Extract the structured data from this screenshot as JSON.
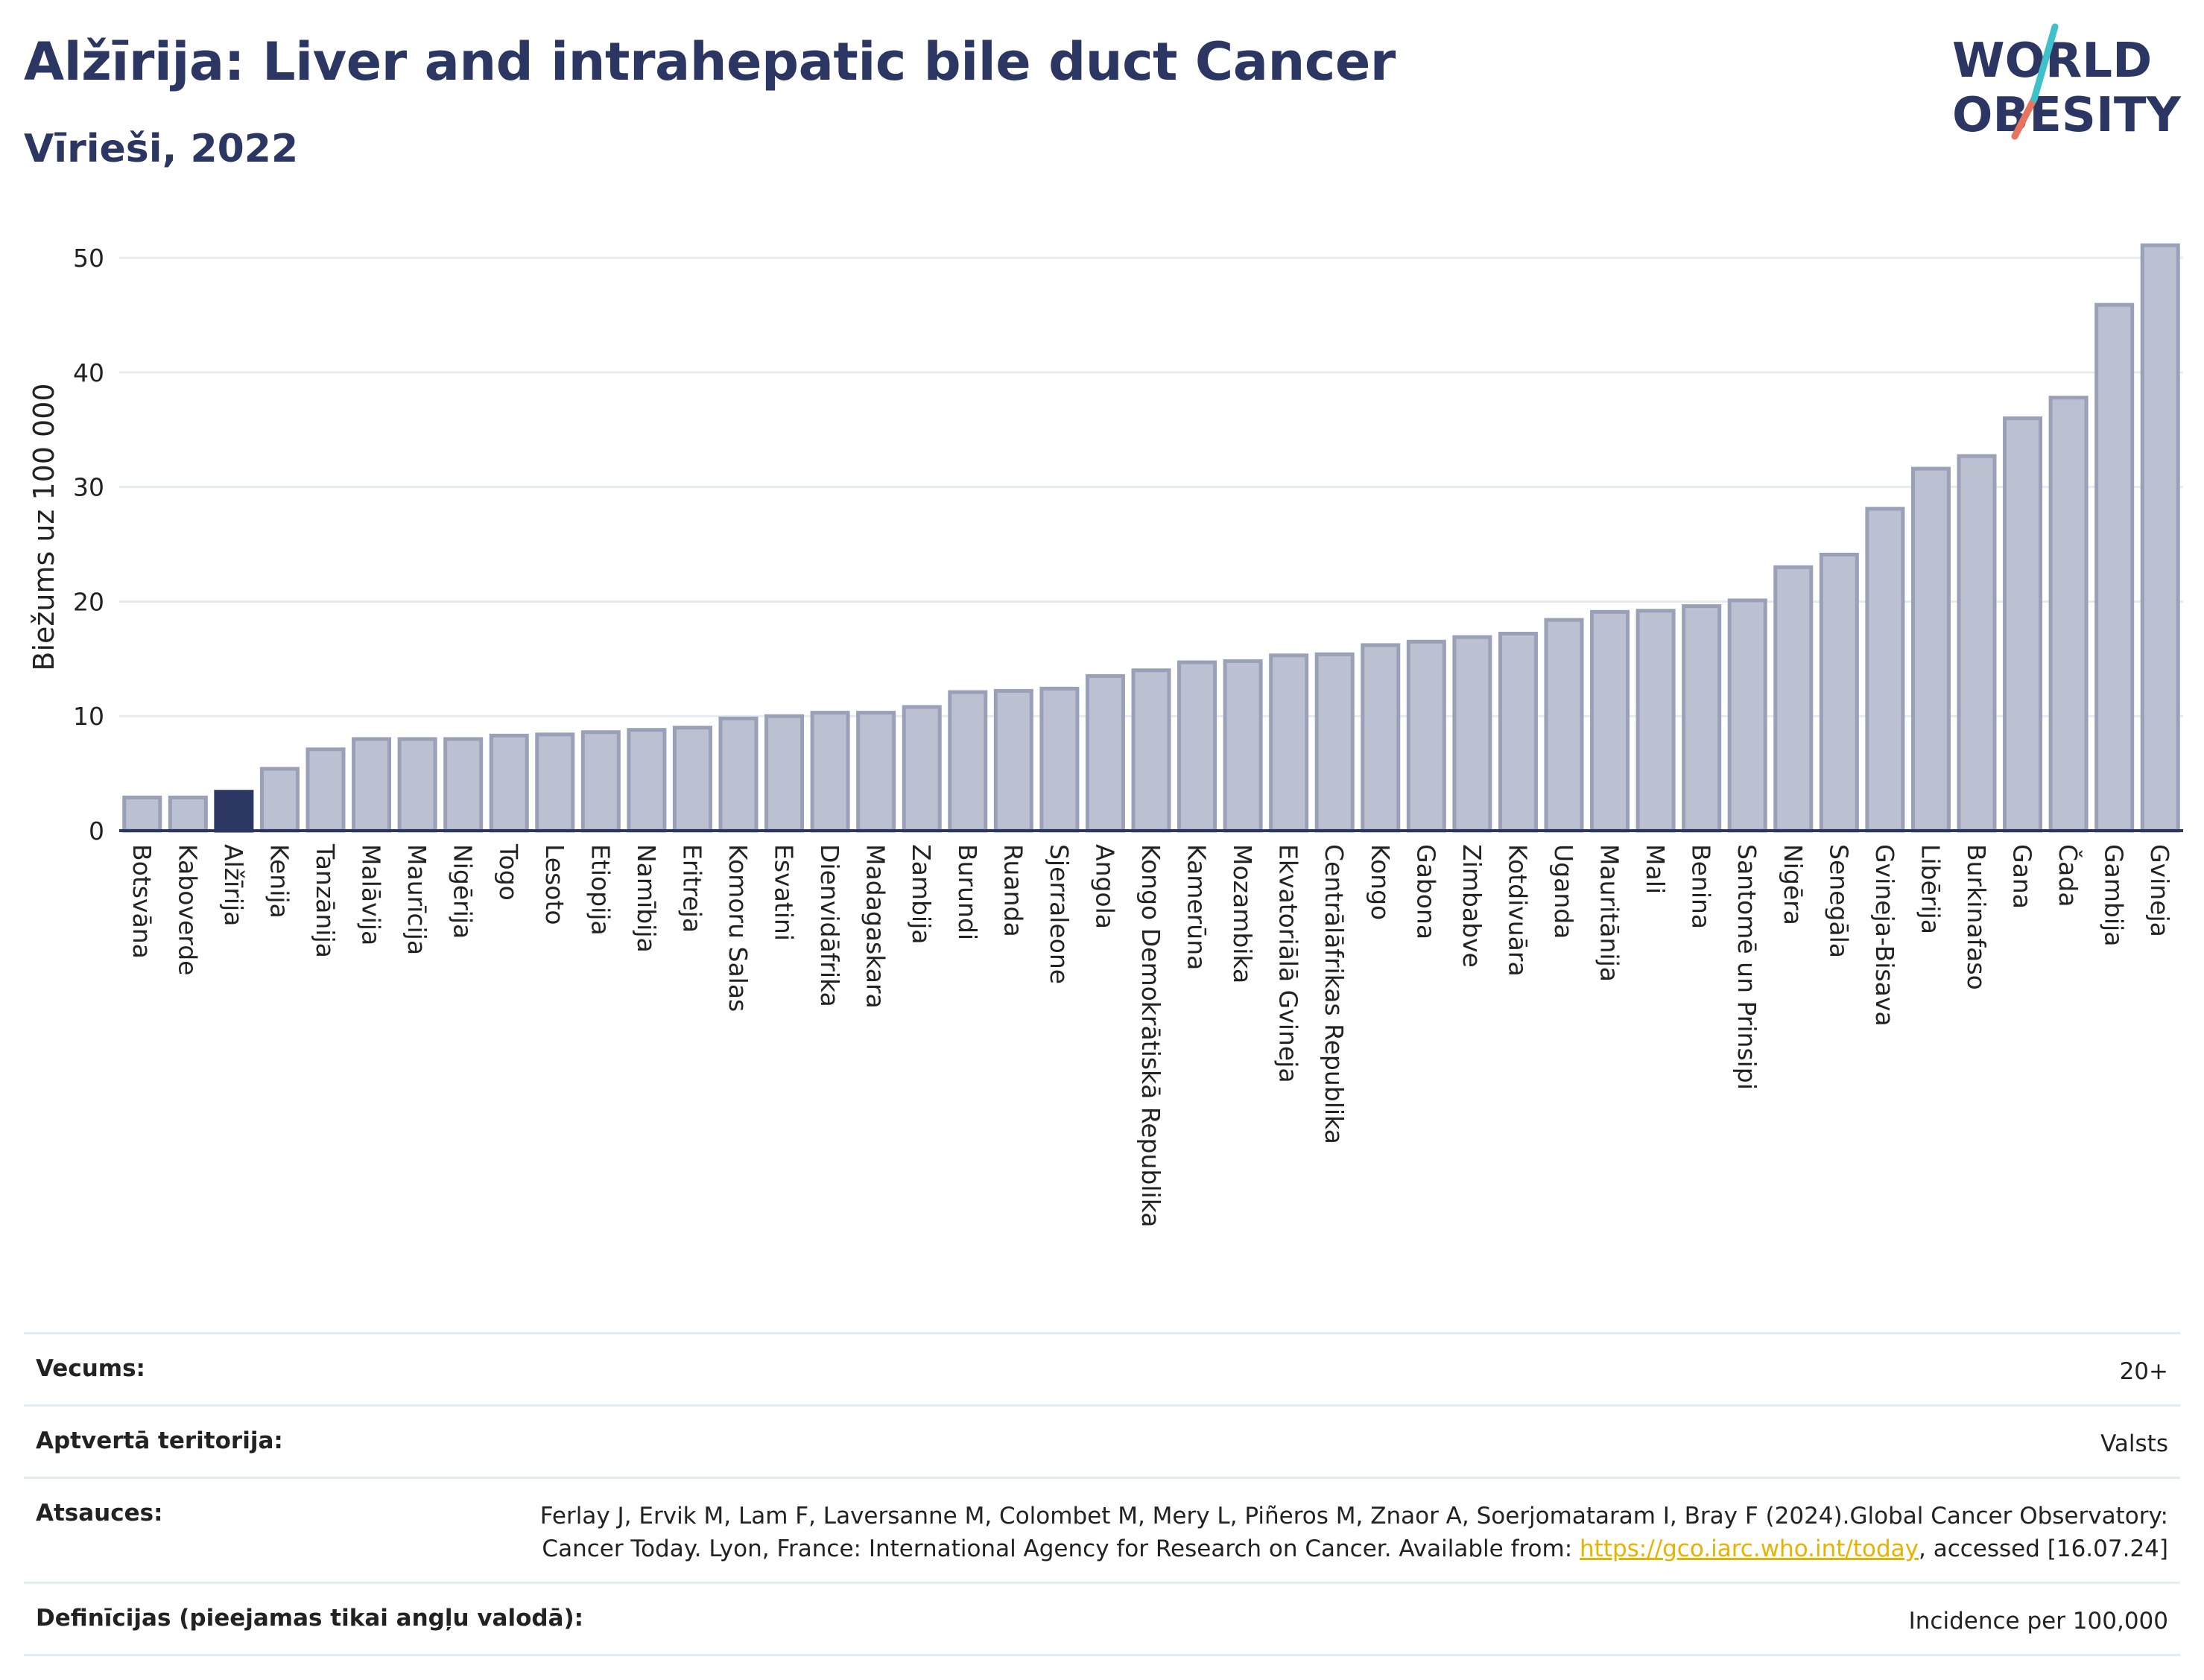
{
  "header": {
    "title": "Alžīrija: Liver and intrahepatic bile duct Cancer",
    "subtitle": "Vīrieši, 2022"
  },
  "logo": {
    "line1": "WORLD",
    "line2": "OBESITY"
  },
  "colors": {
    "bar": "#bcc1d1",
    "bar_stroke": "#9aa0b8",
    "highlight": "#2b3663",
    "grid": "#e6ebf0",
    "text": "#2b3663"
  },
  "chart_data": {
    "type": "bar",
    "title": "Alžīrija: Liver and intrahepatic bile duct Cancer",
    "subtitle": "Vīrieši, 2022",
    "xlabel": "",
    "ylabel": "Biežums uz 100 000",
    "ylim": [
      0,
      53
    ],
    "yticks": [
      0,
      10,
      20,
      30,
      40,
      50
    ],
    "grid": true,
    "highlight": "Alžīrija",
    "categories": [
      "Botsvāna",
      "Kaboverde",
      "Alžīrija",
      "Kenija",
      "Tanzānija",
      "Malāvija",
      "Maurīcija",
      "Nigērija",
      "Togo",
      "Lesoto",
      "Etiopija",
      "Namībija",
      "Eritreja",
      "Komoru Salas",
      "Esvatini",
      "Dienvidāfrika",
      "Madagaskara",
      "Zambija",
      "Burundi",
      "Ruanda",
      "Sjerraleone",
      "Angola",
      "Kongo Demokrātiskā Republika",
      "Kamerūna",
      "Mozambika",
      "Ekvatoriālā Gvineja",
      "Centrālāfrikas Republika",
      "Kongo",
      "Gabona",
      "Zimbabve",
      "Kotdivuāra",
      "Uganda",
      "Mauritānija",
      "Mali",
      "Benina",
      "Santomē un Prinsipi",
      "Nigēra",
      "Senegāla",
      "Gvineja-Bisava",
      "Libērija",
      "Burkinafaso",
      "Gana",
      "Čada",
      "Gambija",
      "Gvineja"
    ],
    "values": [
      2.9,
      2.9,
      3.4,
      5.4,
      7.1,
      8.0,
      8.0,
      8.0,
      8.3,
      8.4,
      8.6,
      8.8,
      9.0,
      9.8,
      10.0,
      10.3,
      10.3,
      10.8,
      12.1,
      12.2,
      12.4,
      13.5,
      14.0,
      14.7,
      14.8,
      15.3,
      15.4,
      16.2,
      16.5,
      16.9,
      17.2,
      18.4,
      19.1,
      19.2,
      19.6,
      20.1,
      23.0,
      24.1,
      28.1,
      31.6,
      32.7,
      36.0,
      37.8,
      45.9,
      51.1
    ]
  },
  "meta": {
    "age_label": "Vecums:",
    "age_value": "20+",
    "territory_label": "Aptvertā teritorija:",
    "territory_value": "Valsts",
    "refs_label": "Atsauces:",
    "refs_text1": "Ferlay J, Ervik M, Lam F, Laversanne M, Colombet M, Mery L, Piñeros M, Znaor A, Soerjomataram I, Bray F (2024).Global Cancer Observatory: Cancer Today. Lyon, France: International Agency for Research on Cancer. Available from: ",
    "refs_link": "https://gco.iarc.who.int/today",
    "refs_text2": ", accessed [16.07.24]",
    "defs_label": "Definīcijas (pieejamas tikai angļu valodā):",
    "defs_value": "Incidence per 100,000"
  }
}
